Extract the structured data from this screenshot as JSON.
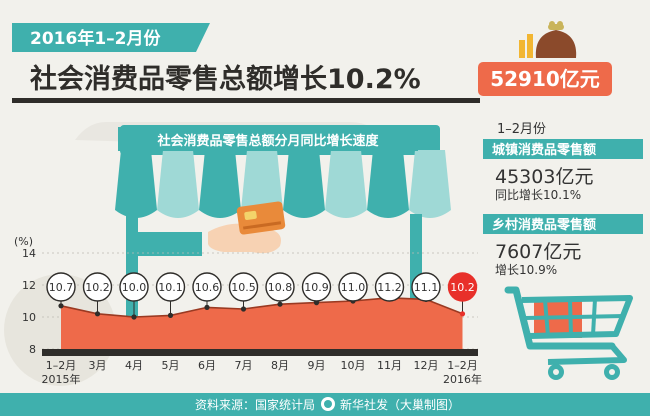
{
  "header": {
    "date_label": "2016年1–2月份",
    "headline": "社会消费品零售总额增长10.2%",
    "total_value": "52910亿元"
  },
  "chart_data": {
    "type": "line",
    "title": "社会消费品零售总额分月同比增长速度",
    "ylabel": "(%)",
    "ylim": [
      8,
      14
    ],
    "yticks": [
      "14",
      "12",
      "10",
      "8"
    ],
    "categories": [
      "1–2月",
      "3月",
      "4月",
      "5月",
      "6月",
      "7月",
      "8月",
      "9月",
      "10月",
      "11月",
      "12月",
      "1–2月"
    ],
    "year_labels": [
      {
        "index": 0,
        "text": "2015年"
      },
      {
        "index": 11,
        "text": "2016年"
      }
    ],
    "values": [
      10.7,
      10.2,
      10.0,
      10.1,
      10.6,
      10.5,
      10.8,
      10.9,
      11.0,
      11.2,
      11.1,
      10.2
    ],
    "labels": [
      "10.7",
      "10.2",
      "10.0",
      "10.1",
      "10.6",
      "10.5",
      "10.8",
      "10.9",
      "11.0",
      "11.2",
      "11.1",
      "10.2"
    ],
    "highlight_index": 11
  },
  "sidebar": {
    "period": "1–2月份",
    "urban": {
      "title": "城镇消费品零售额",
      "value": "45303亿元",
      "growth": "同比增长10.1%"
    },
    "rural": {
      "title": "乡村消费品零售额",
      "value": "7607亿元",
      "growth": "增长10.9%"
    }
  },
  "footer": {
    "source": "资料来源：国家统计局",
    "credit": "新华社发（大巢制图）"
  },
  "colors": {
    "teal": "#3fb0ad",
    "teal_light": "#9fd9d6",
    "orange": "#ee6a4a",
    "red": "#e8302a",
    "bar": "#2f2d2a"
  }
}
